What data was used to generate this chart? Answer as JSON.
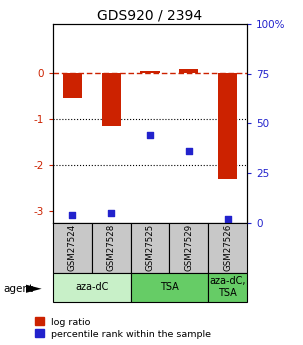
{
  "title": "GDS920 / 2394",
  "samples": [
    "GSM27524",
    "GSM27528",
    "GSM27525",
    "GSM27529",
    "GSM27526"
  ],
  "log_ratio": [
    -0.55,
    -1.15,
    0.03,
    0.07,
    -2.3
  ],
  "percentile": [
    4,
    5,
    44,
    36,
    2
  ],
  "agent_groups": [
    {
      "label": "aza-dC",
      "start": 0,
      "end": 2,
      "color": "#c8f0c8"
    },
    {
      "label": "TSA",
      "start": 2,
      "end": 4,
      "color": "#66cc66"
    },
    {
      "label": "aza-dC,\nTSA",
      "start": 4,
      "end": 5,
      "color": "#66cc66"
    }
  ],
  "bar_color": "#cc2200",
  "dot_color": "#2222cc",
  "ylim_left": [
    -3.25,
    1.05
  ],
  "ylim_right": [
    0,
    100
  ],
  "yticks_left": [
    0,
    -1,
    -2,
    -3
  ],
  "ytick_labels_left": [
    "0",
    "-1",
    "-2",
    "-3"
  ],
  "yticks_right": [
    100,
    75,
    50,
    25,
    0
  ],
  "ytick_labels_right": [
    "100%",
    "75",
    "50",
    "25",
    "0"
  ],
  "hlines": [
    -1.0,
    -2.0
  ],
  "legend_log_ratio": "log ratio",
  "legend_percentile": "percentile rank within the sample",
  "agent_label": "agent",
  "sample_box_color": "#c8c8c8",
  "bar_width": 0.5
}
